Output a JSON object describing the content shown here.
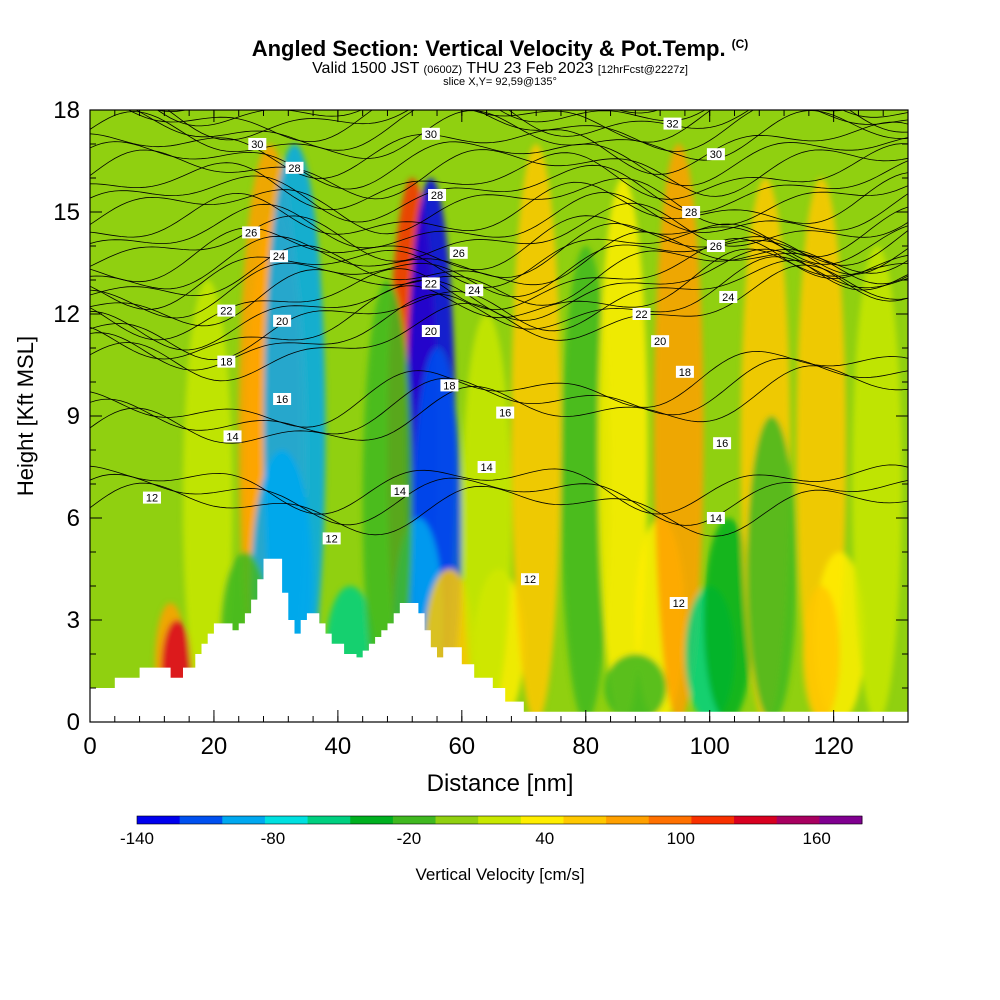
{
  "header": {
    "title": "Angled Section: Vertical Velocity & Pot.Temp.",
    "copyright": "(C)",
    "valid_main_a": "Valid 1500 JST",
    "valid_paren": "(0600Z)",
    "valid_main_b": "THU 23 Feb 2023",
    "forecast": "[12hrFcst@2227z]",
    "slice": "slice X,Y= 92,59@135°"
  },
  "chart_data": {
    "type": "heatmap",
    "xlabel": "Distance [nm]",
    "ylabel": "Height [Kft MSL]",
    "xlim": [
      0,
      132
    ],
    "ylim": [
      0,
      18
    ],
    "x_ticks": [
      0,
      20,
      40,
      60,
      80,
      100,
      120
    ],
    "y_ticks": [
      0,
      3,
      6,
      9,
      12,
      15,
      18
    ],
    "colorbar": {
      "label": "Vertical Velocity [cm/s]",
      "min": -140,
      "max": 180,
      "step": 20,
      "tick_labels": [
        -140,
        -80,
        -20,
        40,
        100,
        160
      ],
      "colors": [
        "#0000ee",
        "#0050f0",
        "#00a8f0",
        "#00e0e0",
        "#00d080",
        "#00b020",
        "#40b820",
        "#90d010",
        "#c8e800",
        "#ffee00",
        "#ffc800",
        "#ffa000",
        "#ff7000",
        "#f83000",
        "#d80020",
        "#a80060",
        "#800090"
      ]
    },
    "vertical_velocity_cells": [
      {
        "x": 13,
        "h": 3.5,
        "w": 5,
        "v": 80
      },
      {
        "x": 14,
        "h": 3.0,
        "w": 5,
        "v": 140
      },
      {
        "x": 30,
        "h": 15,
        "w": 10,
        "v": 60
      },
      {
        "x": 29,
        "h": 17,
        "w": 10,
        "v": 90
      },
      {
        "x": 33,
        "h": 17,
        "w": 10,
        "v": -90
      },
      {
        "x": 31,
        "h": 8,
        "w": 10,
        "v": -100
      },
      {
        "x": 19,
        "h": 13,
        "w": 8,
        "v": 20
      },
      {
        "x": 52,
        "h": 16,
        "w": 8,
        "v": 120
      },
      {
        "x": 55,
        "h": 16,
        "w": 8,
        "v": -140
      },
      {
        "x": 56,
        "h": 11,
        "w": 8,
        "v": -110
      },
      {
        "x": 53,
        "h": 6,
        "w": 8,
        "v": -90
      },
      {
        "x": 42,
        "h": 4,
        "w": 8,
        "v": -60
      },
      {
        "x": 48,
        "h": 13,
        "w": 8,
        "v": -20
      },
      {
        "x": 58,
        "h": 4.5,
        "w": 8,
        "v": 60
      },
      {
        "x": 66,
        "h": 4.5,
        "w": 8,
        "v": 50
      },
      {
        "x": 72,
        "h": 17,
        "w": 8,
        "v": 60
      },
      {
        "x": 80,
        "h": 14,
        "w": 8,
        "v": -20
      },
      {
        "x": 86,
        "h": 16,
        "w": 8,
        "v": 40
      },
      {
        "x": 92,
        "h": 6,
        "w": 8,
        "v": 40
      },
      {
        "x": 95,
        "h": 17,
        "w": 8,
        "v": 80
      },
      {
        "x": 100,
        "h": 4,
        "w": 8,
        "v": -50
      },
      {
        "x": 103,
        "h": 6,
        "w": 8,
        "v": -40
      },
      {
        "x": 109,
        "h": 16,
        "w": 8,
        "v": 70
      },
      {
        "x": 118,
        "h": 16,
        "w": 8,
        "v": 60
      },
      {
        "x": 121,
        "h": 5,
        "w": 8,
        "v": 40
      },
      {
        "x": 118,
        "h": 4,
        "w": 6,
        "v": 60
      },
      {
        "x": 110,
        "h": 9,
        "w": 8,
        "v": -10
      },
      {
        "x": 127,
        "h": 14,
        "w": 8,
        "v": 30
      },
      {
        "x": 25,
        "h": 5,
        "w": 8,
        "v": -20
      },
      {
        "x": 88,
        "h": 2,
        "w": 10,
        "v": -20
      },
      {
        "x": 64,
        "h": 12,
        "w": 8,
        "v": 30
      }
    ],
    "terrain_kft": [
      [
        0,
        1.0
      ],
      [
        4,
        1.0
      ],
      [
        4,
        1.3
      ],
      [
        8,
        1.3
      ],
      [
        8,
        1.6
      ],
      [
        13,
        1.6
      ],
      [
        13,
        1.3
      ],
      [
        15,
        1.3
      ],
      [
        15,
        1.6
      ],
      [
        17,
        1.6
      ],
      [
        17,
        2.0
      ],
      [
        18,
        2.0
      ],
      [
        18,
        2.3
      ],
      [
        19,
        2.3
      ],
      [
        19,
        2.6
      ],
      [
        20,
        2.6
      ],
      [
        20,
        2.9
      ],
      [
        23,
        2.9
      ],
      [
        23,
        2.7
      ],
      [
        24,
        2.7
      ],
      [
        24,
        2.9
      ],
      [
        25,
        2.9
      ],
      [
        25,
        3.2
      ],
      [
        26,
        3.2
      ],
      [
        26,
        3.6
      ],
      [
        27,
        3.6
      ],
      [
        27,
        4.2
      ],
      [
        28,
        4.2
      ],
      [
        28,
        4.8
      ],
      [
        31,
        4.8
      ],
      [
        31,
        3.8
      ],
      [
        32,
        3.8
      ],
      [
        32,
        3.0
      ],
      [
        33,
        3.0
      ],
      [
        33,
        2.6
      ],
      [
        34,
        2.6
      ],
      [
        34,
        3.0
      ],
      [
        35,
        3.0
      ],
      [
        35,
        3.2
      ],
      [
        37,
        3.2
      ],
      [
        37,
        2.9
      ],
      [
        38,
        2.9
      ],
      [
        38,
        2.6
      ],
      [
        39,
        2.6
      ],
      [
        39,
        2.3
      ],
      [
        41,
        2.3
      ],
      [
        41,
        2.0
      ],
      [
        43,
        2.0
      ],
      [
        43,
        1.9
      ],
      [
        44,
        1.9
      ],
      [
        44,
        2.1
      ],
      [
        45,
        2.1
      ],
      [
        45,
        2.3
      ],
      [
        46,
        2.3
      ],
      [
        46,
        2.5
      ],
      [
        47,
        2.5
      ],
      [
        47,
        2.7
      ],
      [
        48,
        2.7
      ],
      [
        48,
        2.9
      ],
      [
        49,
        2.9
      ],
      [
        49,
        3.2
      ],
      [
        50,
        3.2
      ],
      [
        50,
        3.5
      ],
      [
        53,
        3.5
      ],
      [
        53,
        3.2
      ],
      [
        54,
        3.2
      ],
      [
        54,
        2.7
      ],
      [
        55,
        2.7
      ],
      [
        55,
        2.2
      ],
      [
        56,
        2.2
      ],
      [
        56,
        1.9
      ],
      [
        57,
        1.9
      ],
      [
        57,
        2.2
      ],
      [
        60,
        2.2
      ],
      [
        60,
        1.7
      ],
      [
        62,
        1.7
      ],
      [
        62,
        1.3
      ],
      [
        65,
        1.3
      ],
      [
        65,
        1.0
      ],
      [
        67,
        1.0
      ],
      [
        67,
        0.6
      ],
      [
        70,
        0.6
      ],
      [
        70,
        0.3
      ],
      [
        132,
        0.3
      ]
    ],
    "theta_contours": [
      {
        "label": "12",
        "base": 6.3,
        "slope": 0
      },
      {
        "label": "14",
        "base": 8.3,
        "slope": 0.012
      },
      {
        "label": "16",
        "base": 10.3,
        "slope": 0.02
      },
      {
        "label": "18",
        "base": 11.2,
        "slope": 0.015
      },
      {
        "label": "20",
        "base": 12.2,
        "slope": 0.012
      },
      {
        "label": "22",
        "base": 12.9,
        "slope": 0.008
      },
      {
        "label": "24",
        "base": 13.9,
        "slope": 0.006
      },
      {
        "label": "26",
        "base": 15.0,
        "slope": 0.004
      },
      {
        "label": "28",
        "base": 16.1,
        "slope": 0.002
      },
      {
        "label": "30",
        "base": 17.1,
        "slope": 0.001
      },
      {
        "label": "32",
        "base": 17.8,
        "slope": 0
      }
    ],
    "theta_labels": [
      {
        "text": "30",
        "x": 27,
        "y": 17.0
      },
      {
        "text": "28",
        "x": 33,
        "y": 16.3
      },
      {
        "text": "26",
        "x": 26,
        "y": 14.4
      },
      {
        "text": "24",
        "x": 30.5,
        "y": 13.7
      },
      {
        "text": "22",
        "x": 22,
        "y": 12.1
      },
      {
        "text": "20",
        "x": 31,
        "y": 11.8
      },
      {
        "text": "18",
        "x": 22,
        "y": 10.6
      },
      {
        "text": "16",
        "x": 31,
        "y": 9.5
      },
      {
        "text": "14",
        "x": 23,
        "y": 8.4
      },
      {
        "text": "12",
        "x": 10,
        "y": 6.6
      },
      {
        "text": "12",
        "x": 39,
        "y": 5.4
      },
      {
        "text": "14",
        "x": 50,
        "y": 6.8
      },
      {
        "text": "30",
        "x": 55,
        "y": 17.3
      },
      {
        "text": "28",
        "x": 56,
        "y": 15.5
      },
      {
        "text": "26",
        "x": 59.5,
        "y": 13.8
      },
      {
        "text": "24",
        "x": 62,
        "y": 12.7
      },
      {
        "text": "22",
        "x": 55,
        "y": 12.9
      },
      {
        "text": "20",
        "x": 55,
        "y": 11.5
      },
      {
        "text": "18",
        "x": 58,
        "y": 9.9
      },
      {
        "text": "16",
        "x": 67,
        "y": 9.1
      },
      {
        "text": "14",
        "x": 64,
        "y": 7.5
      },
      {
        "text": "12",
        "x": 71,
        "y": 4.2
      },
      {
        "text": "32",
        "x": 94,
        "y": 17.6
      },
      {
        "text": "30",
        "x": 101,
        "y": 16.7
      },
      {
        "text": "28",
        "x": 97,
        "y": 15.0
      },
      {
        "text": "26",
        "x": 101,
        "y": 14.0
      },
      {
        "text": "24",
        "x": 103,
        "y": 12.5
      },
      {
        "text": "22",
        "x": 89,
        "y": 12.0
      },
      {
        "text": "20",
        "x": 92,
        "y": 11.2
      },
      {
        "text": "18",
        "x": 96,
        "y": 10.3
      },
      {
        "text": "16",
        "x": 102,
        "y": 8.2
      },
      {
        "text": "14",
        "x": 101,
        "y": 6.0
      },
      {
        "text": "12",
        "x": 95,
        "y": 3.5
      }
    ]
  }
}
